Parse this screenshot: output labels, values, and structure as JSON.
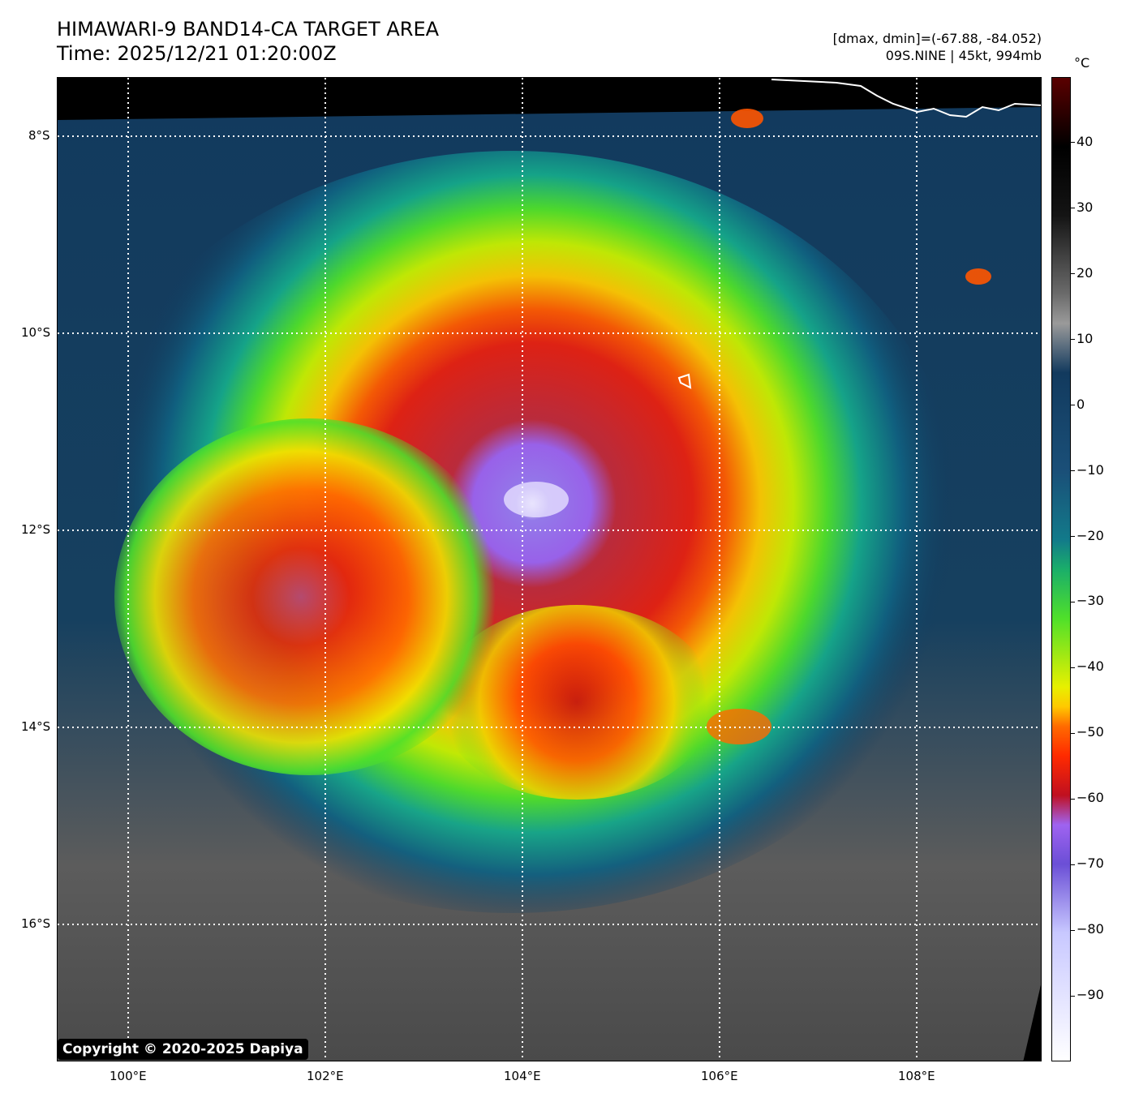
{
  "title": {
    "line1": "HIMAWARI-9 BAND14-CA TARGET AREA",
    "line2": "Time: 2025/12/21 01:20:00Z"
  },
  "info": {
    "range": "[dmax, dmin]=(-67.88, -84.052)",
    "storm": "09S.NINE | 45kt, 994mb"
  },
  "map": {
    "lon_ticks": [
      "100°E",
      "102°E",
      "104°E",
      "106°E",
      "108°E"
    ],
    "lat_ticks": [
      "8°S",
      "10°S",
      "12°S",
      "14°S",
      "16°S"
    ],
    "gridlines": "dotted white",
    "lon_range": [
      99.27,
      109.27
    ],
    "lat_range": [
      -7.4,
      -17.4
    ]
  },
  "colorbar": {
    "unit": "°C",
    "ticks": [
      "40",
      "30",
      "20",
      "10",
      "0",
      "−10",
      "−20",
      "−30",
      "−40",
      "−50",
      "−60",
      "−70",
      "−80",
      "−90"
    ],
    "range": [
      -100,
      50
    ],
    "colors": [
      "#ffffff",
      "#6b4fd6",
      "#9f63f0",
      "#d01818",
      "#ff5500",
      "#ffc800",
      "#e8f000",
      "#4fe02a",
      "#15a88a",
      "#106080",
      "#123a5e",
      "#6b6b6b",
      "#141414",
      "#000000",
      "#5a0000"
    ]
  },
  "copyright": "Copyright © 2020-2025 Dapiya"
}
